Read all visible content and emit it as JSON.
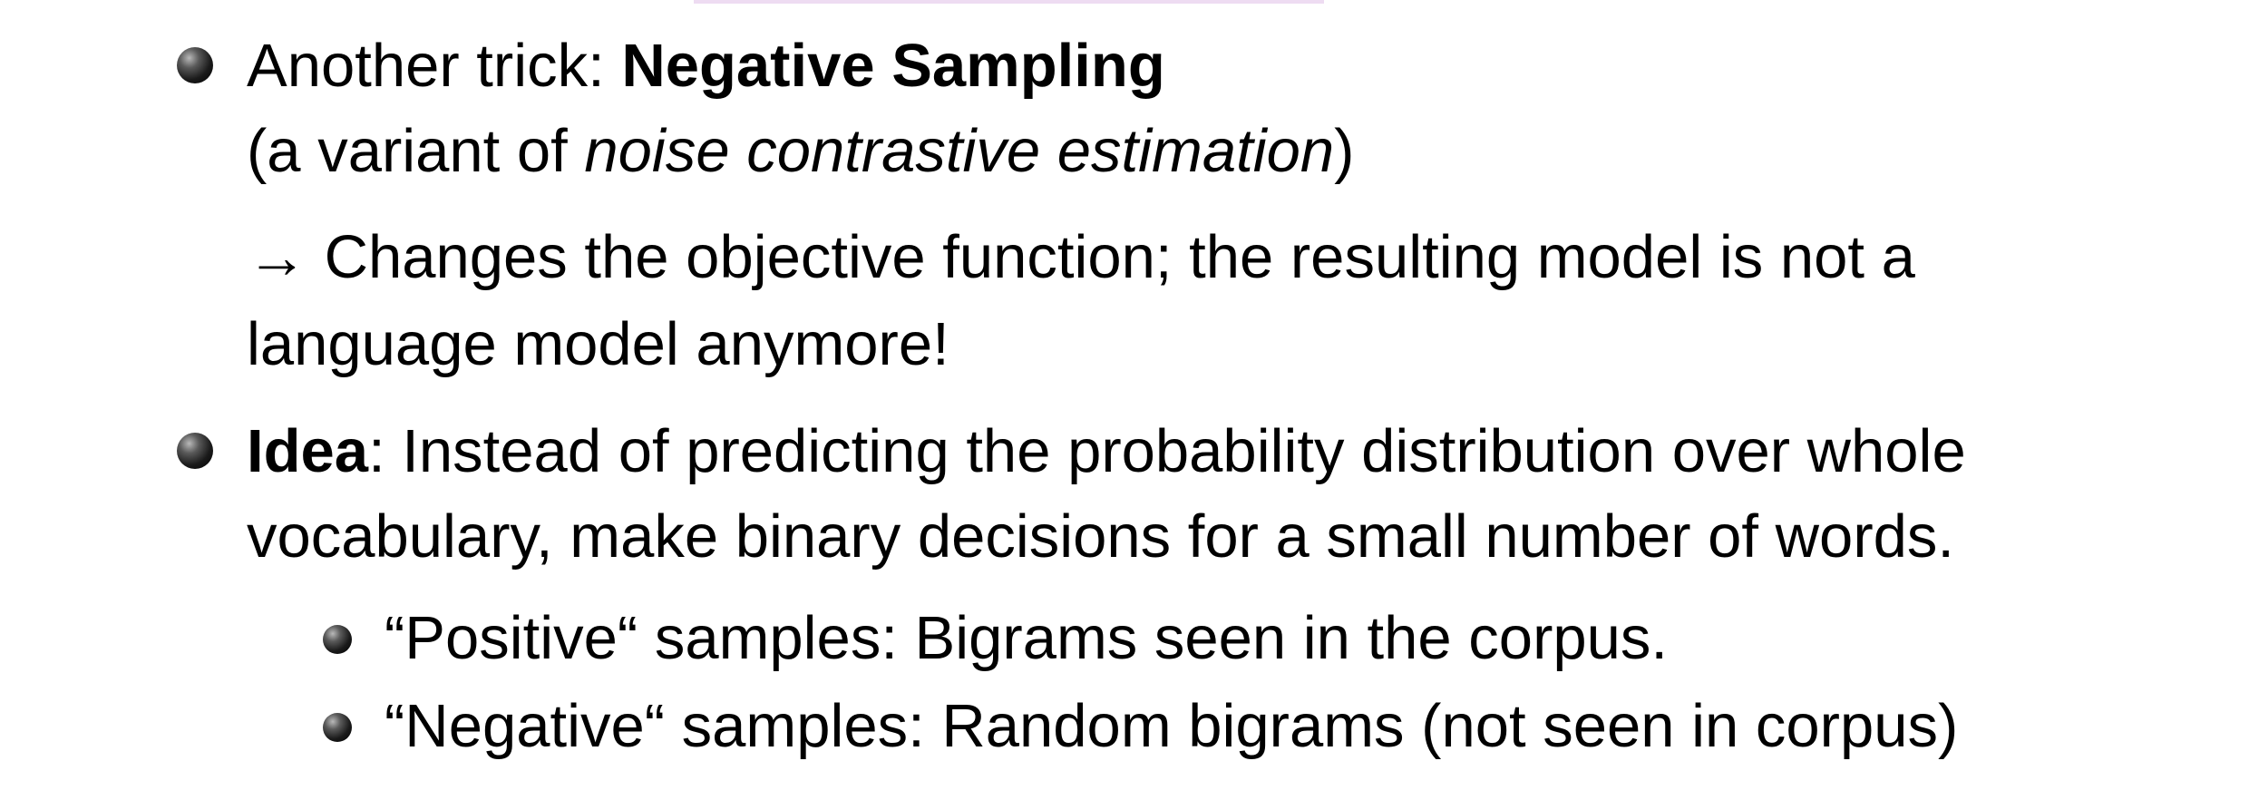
{
  "slide": {
    "bullet1": {
      "prefix": "Another trick: ",
      "bold": "Negative Sampling",
      "paren_open": "(a variant of ",
      "italic": "noise contrastive estimation",
      "paren_close": ")",
      "arrow": "→",
      "arrow_line1": " Changes the objective function; the resulting model is not a",
      "arrow_line2": "language model anymore!"
    },
    "bullet2": {
      "bold": "Idea",
      "line1_rest": ": Instead of predicting the probability distribution over whole",
      "line2": "vocabulary, make binary decisions for a small number of words.",
      "subitems": [
        "“Positive“ samples: Bigrams seen in the corpus.",
        "“Negative“ samples: Random bigrams (not seen in corpus)"
      ]
    }
  }
}
